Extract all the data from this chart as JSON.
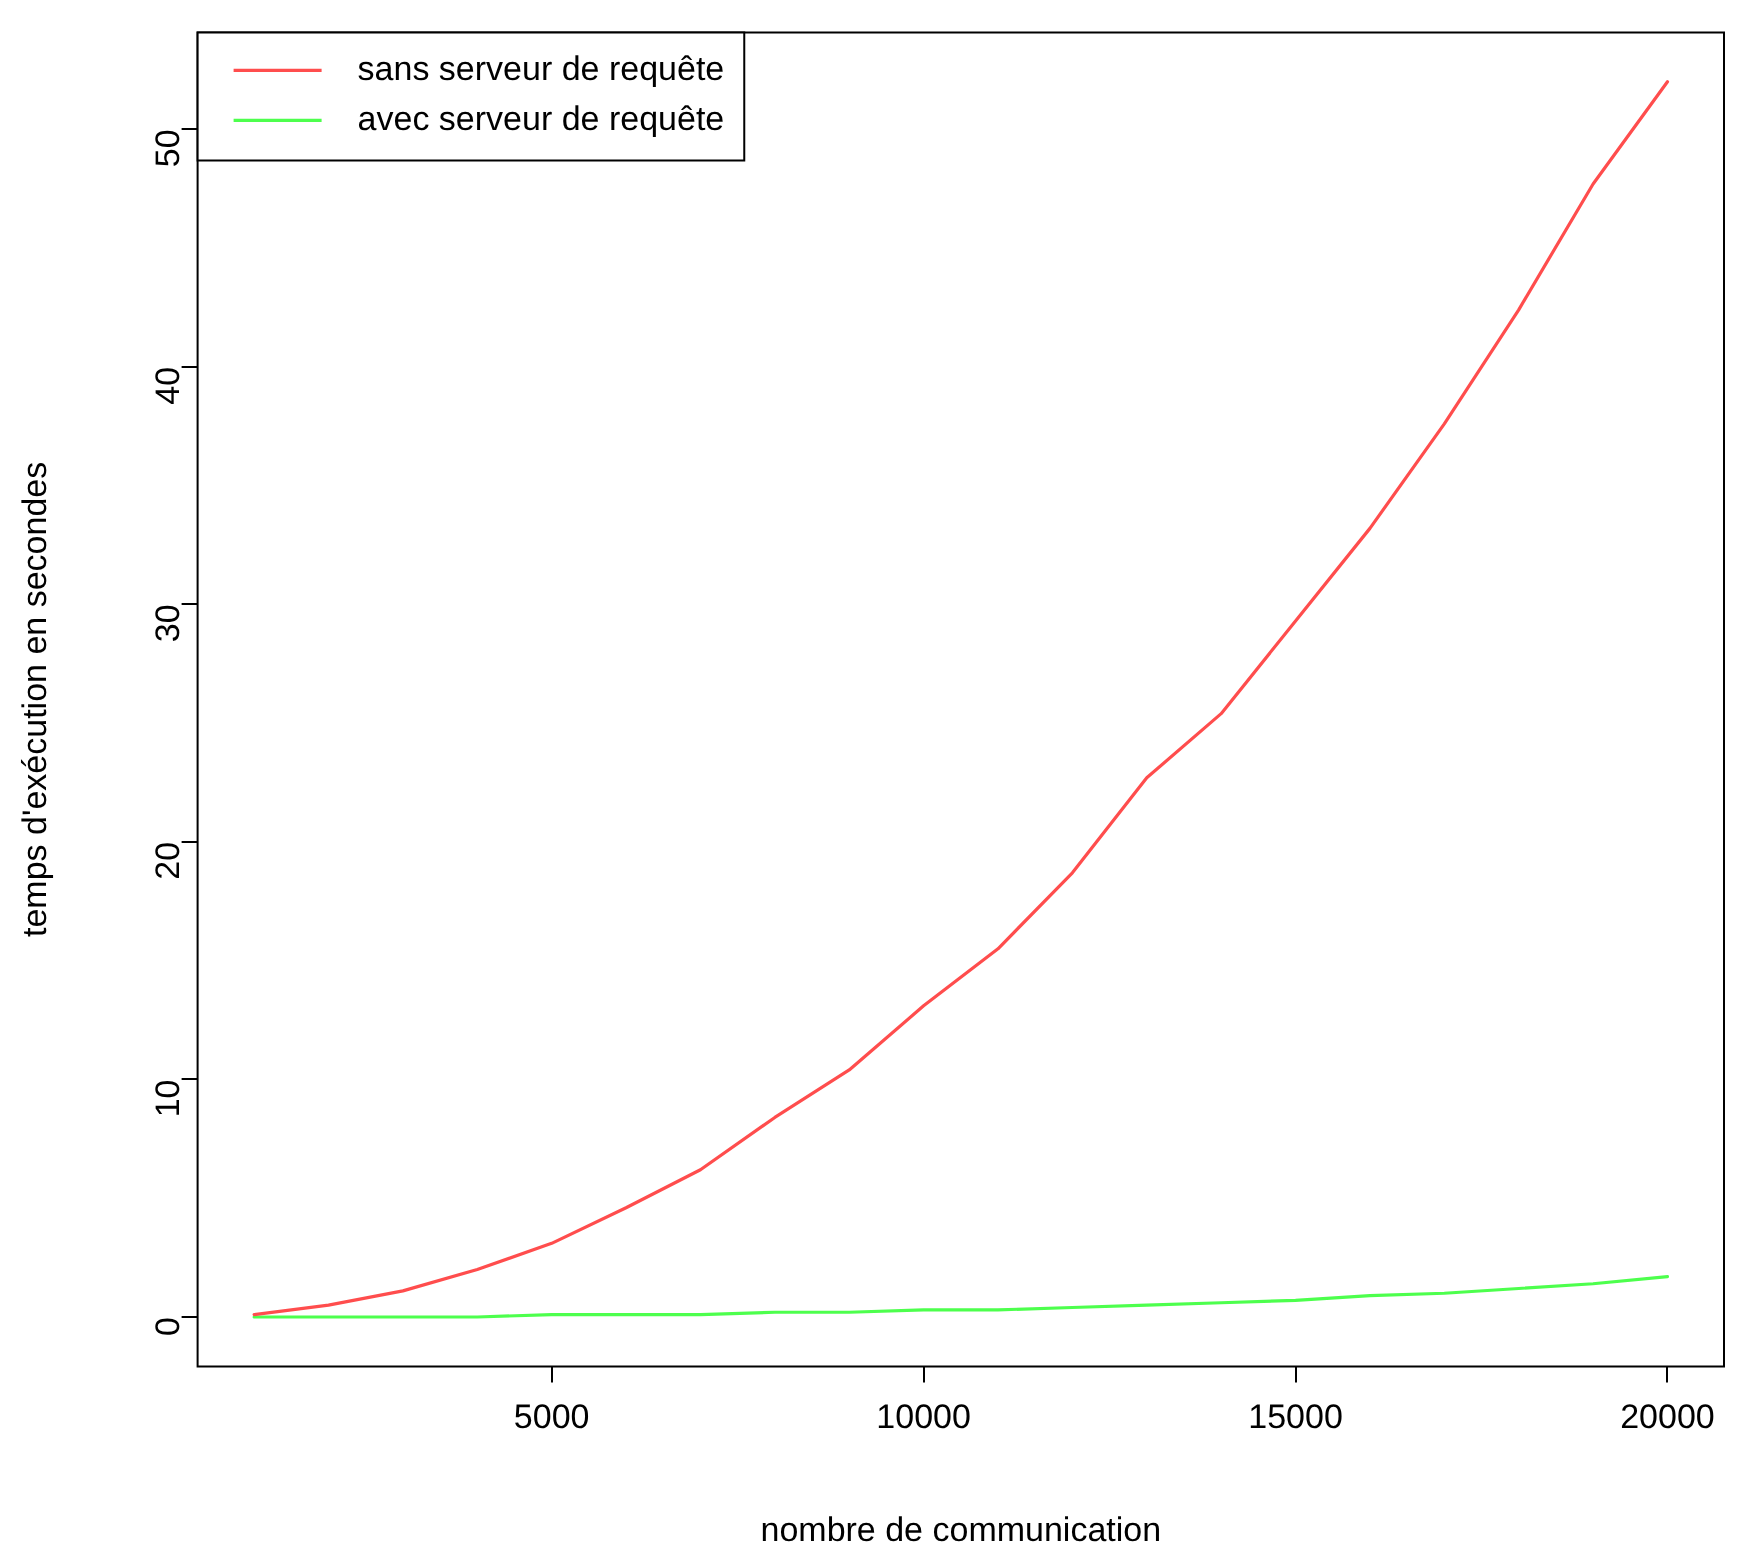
{
  "chart_data": {
    "type": "line",
    "xlabel": "nombre de communication",
    "ylabel": "temps d'exécution en secondes",
    "x": [
      1000,
      2000,
      3000,
      4000,
      5000,
      6000,
      7000,
      8000,
      9000,
      10000,
      11000,
      12000,
      13000,
      14000,
      15000,
      16000,
      17000,
      18000,
      19000,
      20000
    ],
    "series": [
      {
        "name": "sans serveur de requête",
        "color": "#ff4d4d",
        "values": [
          0.1,
          0.5,
          1.1,
          2.0,
          3.1,
          4.6,
          6.2,
          8.4,
          10.4,
          13.1,
          15.5,
          18.7,
          22.7,
          25.4,
          29.3,
          33.2,
          37.6,
          42.4,
          47.7,
          52.0
        ]
      },
      {
        "name": "avec serveur de requête",
        "color": "#4dff4d",
        "values": [
          0,
          0,
          0,
          0,
          0.1,
          0.1,
          0.1,
          0.2,
          0.2,
          0.3,
          0.3,
          0.4,
          0.5,
          0.6,
          0.7,
          0.9,
          1.0,
          1.2,
          1.4,
          1.7
        ]
      }
    ],
    "xlim": [
      240,
      20760
    ],
    "xticks": [
      5000,
      10000,
      15000,
      20000
    ],
    "ylim": [
      -2.08,
      54.08
    ],
    "yticks": [
      0,
      10,
      20,
      30,
      40,
      50
    ],
    "grid": false,
    "legend": "top left",
    "marker": "none",
    "line_style": "solid"
  }
}
